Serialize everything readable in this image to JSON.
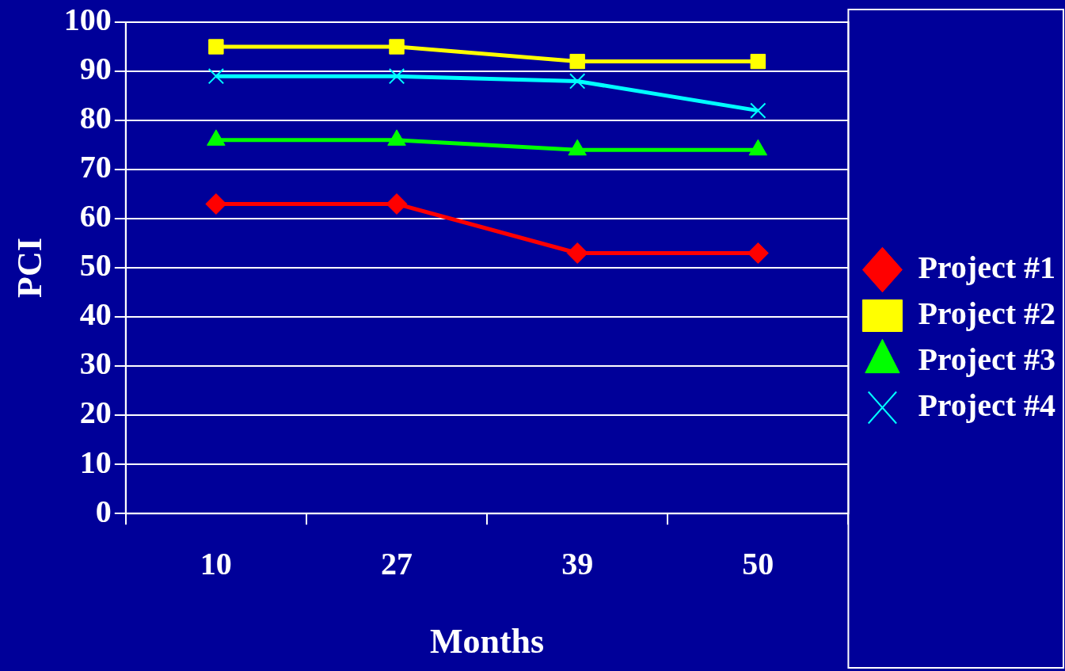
{
  "chart_data": {
    "type": "line",
    "xlabel": "Months",
    "ylabel": "PCI",
    "categories": [
      "10",
      "27",
      "39",
      "50"
    ],
    "series": [
      {
        "name": "Project #1",
        "color": "#ff0000",
        "marker": "diamond",
        "values": [
          63,
          63,
          53,
          53
        ]
      },
      {
        "name": "Project #2",
        "color": "#ffff00",
        "marker": "square",
        "values": [
          95,
          95,
          92,
          92
        ]
      },
      {
        "name": "Project #3",
        "color": "#00ff00",
        "marker": "triangle",
        "values": [
          76,
          76,
          74,
          74
        ]
      },
      {
        "name": "Project #4",
        "color": "#00ffff",
        "marker": "cross",
        "values": [
          89,
          89,
          88,
          82
        ]
      }
    ],
    "ylim": [
      0,
      100
    ],
    "yticks": [
      0,
      10,
      20,
      30,
      40,
      50,
      60,
      70,
      80,
      90,
      100
    ],
    "grid": "y",
    "legend": "right",
    "line_style": "solid"
  }
}
